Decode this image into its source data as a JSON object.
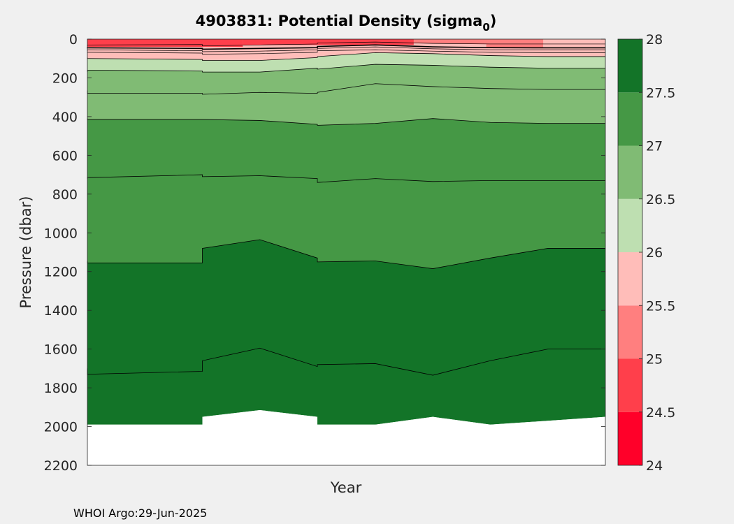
{
  "chart_data": {
    "type": "contour",
    "title": "4903831: Potential Density (sigma",
    "title_subscript": "0",
    "title_suffix": ")",
    "xlabel": "Year",
    "ylabel": "Pressure (dbar)",
    "yticks": [
      "0",
      "200",
      "400",
      "600",
      "800",
      "1000",
      "1200",
      "1400",
      "1600",
      "1800",
      "2000",
      "2200"
    ],
    "ylim": [
      0,
      2200
    ],
    "y_reversed": true,
    "colorbar": {
      "ticks": [
        "24",
        "24.5",
        "25",
        "25.5",
        "26",
        "26.5",
        "27",
        "27.5",
        "28"
      ],
      "range": [
        24,
        28
      ],
      "colors": [
        "#ff0029",
        "#ff3f4b",
        "#ff7f7f",
        "#ffbdb9",
        "#bedfb1",
        "#80bb74",
        "#459845",
        "#137428"
      ]
    },
    "profile_x": [
      0,
      0.0,
      0.222,
      0.222,
      0.333,
      0.444,
      0.444,
      0.556,
      0.667,
      0.778,
      0.889,
      1.0
    ],
    "contours": [
      {
        "level": 27.5,
        "pressure": [
          1700,
          1730,
          1715,
          1660,
          1595,
          1690,
          1680,
          1675,
          1735,
          1660,
          1600,
          1600
        ]
      },
      {
        "level": 27.0,
        "pressure": [
          1145,
          1155,
          1155,
          1080,
          1035,
          1130,
          1150,
          1145,
          1185,
          1130,
          1080,
          1080
        ]
      },
      {
        "level": 26.9,
        "pressure": [
          720,
          715,
          700,
          710,
          705,
          720,
          740,
          720,
          735,
          730,
          730,
          730
        ]
      },
      {
        "level": 26.8,
        "pressure": [
          410,
          415,
          415,
          415,
          420,
          440,
          445,
          435,
          410,
          430,
          435,
          435
        ]
      },
      {
        "level": 26.5,
        "pressure": [
          265,
          280,
          280,
          285,
          275,
          280,
          275,
          230,
          245,
          255,
          260,
          260
        ]
      },
      {
        "level": 26.3,
        "pressure": [
          170,
          160,
          165,
          170,
          170,
          150,
          155,
          130,
          135,
          145,
          150,
          150
        ]
      },
      {
        "level": 26.0,
        "pressure": [
          95,
          100,
          105,
          110,
          110,
          95,
          90,
          70,
          75,
          85,
          90,
          90
        ]
      }
    ],
    "max_pressure": [
      1990,
      1990,
      1990,
      1950,
      1915,
      1950,
      1990,
      1990,
      1950,
      1990,
      1970,
      1950
    ]
  },
  "footer": {
    "credit": "WHOI Argo:29-Jun-2025"
  }
}
